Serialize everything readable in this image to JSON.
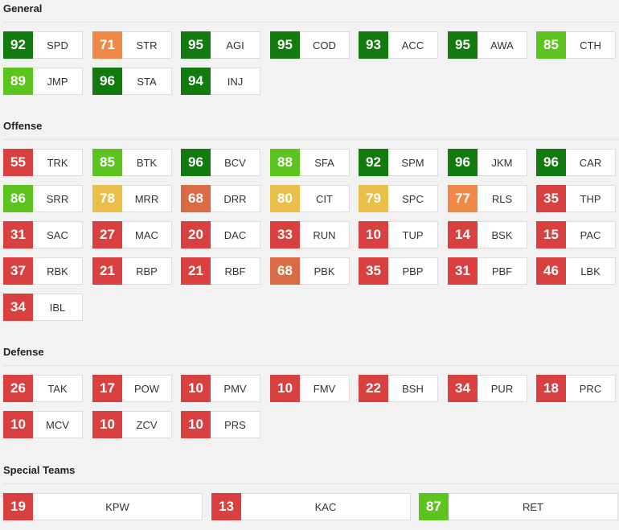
{
  "sections": [
    {
      "title": "General",
      "attrs": [
        {
          "value": "92",
          "label": "SPD"
        },
        {
          "value": "71",
          "label": "STR"
        },
        {
          "value": "95",
          "label": "AGI"
        },
        {
          "value": "95",
          "label": "COD"
        },
        {
          "value": "93",
          "label": "ACC"
        },
        {
          "value": "95",
          "label": "AWA"
        },
        {
          "value": "85",
          "label": "CTH"
        },
        {
          "value": "89",
          "label": "JMP"
        },
        {
          "value": "96",
          "label": "STA"
        },
        {
          "value": "94",
          "label": "INJ"
        }
      ]
    },
    {
      "title": "Offense",
      "attrs": [
        {
          "value": "55",
          "label": "TRK"
        },
        {
          "value": "85",
          "label": "BTK"
        },
        {
          "value": "96",
          "label": "BCV"
        },
        {
          "value": "88",
          "label": "SFA"
        },
        {
          "value": "92",
          "label": "SPM"
        },
        {
          "value": "96",
          "label": "JKM"
        },
        {
          "value": "96",
          "label": "CAR"
        },
        {
          "value": "86",
          "label": "SRR"
        },
        {
          "value": "78",
          "label": "MRR"
        },
        {
          "value": "68",
          "label": "DRR"
        },
        {
          "value": "80",
          "label": "CIT"
        },
        {
          "value": "79",
          "label": "SPC"
        },
        {
          "value": "77",
          "label": "RLS"
        },
        {
          "value": "35",
          "label": "THP"
        },
        {
          "value": "31",
          "label": "SAC"
        },
        {
          "value": "27",
          "label": "MAC"
        },
        {
          "value": "20",
          "label": "DAC"
        },
        {
          "value": "33",
          "label": "RUN"
        },
        {
          "value": "10",
          "label": "TUP"
        },
        {
          "value": "14",
          "label": "BSK"
        },
        {
          "value": "15",
          "label": "PAC"
        },
        {
          "value": "37",
          "label": "RBK"
        },
        {
          "value": "21",
          "label": "RBP"
        },
        {
          "value": "21",
          "label": "RBF"
        },
        {
          "value": "68",
          "label": "PBK"
        },
        {
          "value": "35",
          "label": "PBP"
        },
        {
          "value": "31",
          "label": "PBF"
        },
        {
          "value": "46",
          "label": "LBK"
        },
        {
          "value": "34",
          "label": "IBL"
        }
      ]
    },
    {
      "title": "Defense",
      "attrs": [
        {
          "value": "26",
          "label": "TAK"
        },
        {
          "value": "17",
          "label": "POW"
        },
        {
          "value": "10",
          "label": "PMV"
        },
        {
          "value": "10",
          "label": "FMV"
        },
        {
          "value": "22",
          "label": "BSH"
        },
        {
          "value": "34",
          "label": "PUR"
        },
        {
          "value": "18",
          "label": "PRC"
        },
        {
          "value": "10",
          "label": "MCV"
        },
        {
          "value": "10",
          "label": "ZCV"
        },
        {
          "value": "10",
          "label": "PRS"
        }
      ]
    },
    {
      "title": "Special Teams",
      "attrs": [
        {
          "value": "19",
          "label": "KPW"
        },
        {
          "value": "13",
          "label": "KAC"
        },
        {
          "value": "87",
          "label": "RET"
        }
      ]
    }
  ],
  "rating_colors": {
    "elite": "#137a0f",
    "great": "#5cc41c",
    "good": "#eac04a",
    "average": "#f08847",
    "below": "#d96b47",
    "poor": "#d94141"
  }
}
